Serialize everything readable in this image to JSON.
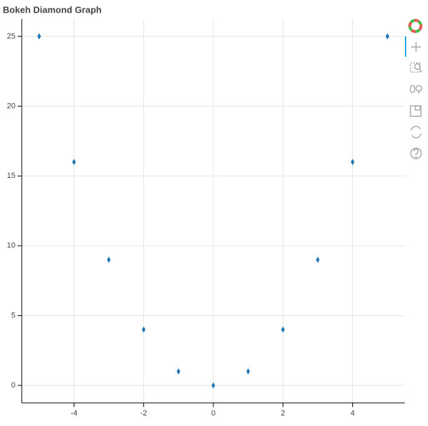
{
  "chart_data": {
    "type": "scatter",
    "title": "Bokeh Diamond Graph",
    "x": [
      -5,
      -4,
      -3,
      -2,
      -1,
      0,
      1,
      2,
      3,
      4,
      5
    ],
    "values": [
      25,
      16,
      9,
      4,
      1,
      0,
      1,
      4,
      9,
      16,
      25
    ],
    "color": "#1f77b4",
    "xlim": [
      -5.5,
      5.5
    ],
    "xticks": [
      -4,
      -2,
      0,
      2,
      4
    ],
    "ylim": [
      -1.25,
      26.25
    ],
    "yticks": [
      0,
      5,
      10,
      15,
      20,
      25
    ],
    "grid": true
  }
}
